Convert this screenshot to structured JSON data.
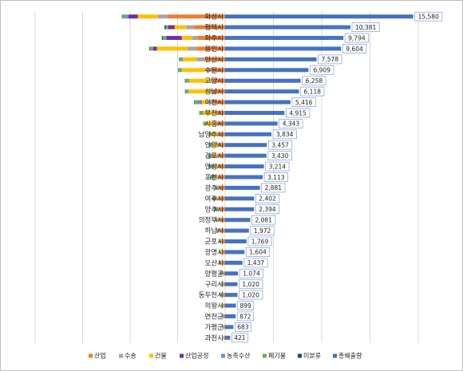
{
  "chart_data": {
    "type": "bar",
    "orientation": "horizontal-diverging",
    "categories": [
      "화성시",
      "평택시",
      "파주시",
      "용인시",
      "안산시",
      "수원시",
      "고양시",
      "성남시",
      "이천시",
      "부천시",
      "시흥시",
      "남양주시",
      "안양시",
      "김포시",
      "안성시",
      "포천시",
      "광주시",
      "여주시",
      "양주시",
      "의정부시",
      "하남시",
      "군포시",
      "광명시",
      "오산시",
      "양평군",
      "구리시",
      "동두천시",
      "의왕시",
      "연천군",
      "가평군",
      "과천시"
    ],
    "totals": [
      15580,
      10381,
      9794,
      9604,
      7578,
      6909,
      6258,
      6118,
      5416,
      4915,
      4343,
      3834,
      3457,
      3430,
      3214,
      3113,
      2881,
      2402,
      2394,
      2081,
      1972,
      1769,
      1604,
      1437,
      1074,
      1020,
      1020,
      899,
      872,
      683,
      421
    ],
    "total_labels": [
      "15,580",
      "10,381",
      "9,794",
      "9,604",
      "7,578",
      "6,909",
      "6,258",
      "6,118",
      "5,416",
      "4,915",
      "4,343",
      "3,834",
      "3,457",
      "3,430",
      "3,214",
      "3,113",
      "2,881",
      "2,402",
      "2,394",
      "2,081",
      "1,972",
      "1,769",
      "1,604",
      "1,437",
      "1,074",
      "1,020",
      "1,020",
      "899",
      "872",
      "683",
      "421"
    ],
    "series": [
      {
        "name": "산업",
        "color": "#ed7d31",
        "values": [
          4800,
          2600,
          2300,
          2400,
          1700,
          1200,
          950,
          1100,
          1000,
          700,
          700,
          550,
          520,
          560,
          500,
          500,
          400,
          380,
          330,
          300,
          300,
          200,
          210,
          220,
          150,
          140,
          160,
          120,
          110,
          90,
          70
        ]
      },
      {
        "name": "수송",
        "color": "#a5a5a5",
        "values": [
          850,
          650,
          450,
          750,
          650,
          350,
          260,
          180,
          480,
          150,
          220,
          120,
          170,
          170,
          170,
          130,
          90,
          160,
          130,
          150,
          110,
          70,
          70,
          70,
          70,
          70,
          50,
          50,
          30,
          30,
          25
        ]
      },
      {
        "name": "건물",
        "color": "#ffc000",
        "values": [
          1700,
          1000,
          900,
          2600,
          1200,
          2100,
          1800,
          1800,
          500,
          1000,
          650,
          450,
          400,
          350,
          270,
          200,
          140,
          220,
          150,
          200,
          120,
          90,
          120,
          80,
          60,
          70,
          60,
          90,
          30,
          40,
          35
        ]
      },
      {
        "name": "산업공정",
        "color": "#7030a0",
        "values": [
          800,
          550,
          1300,
          300,
          0,
          0,
          0,
          0,
          80,
          0,
          0,
          0,
          0,
          0,
          0,
          0,
          0,
          0,
          0,
          0,
          0,
          0,
          0,
          0,
          0,
          0,
          0,
          0,
          0,
          0,
          0
        ]
      },
      {
        "name": "농축수산",
        "color": "#5b9bd5",
        "values": [
          300,
          60,
          150,
          100,
          100,
          150,
          100,
          120,
          300,
          100,
          120,
          90,
          150,
          200,
          300,
          250,
          120,
          180,
          200,
          80,
          100,
          60,
          30,
          90,
          80,
          20,
          80,
          30,
          80,
          60,
          10
        ]
      },
      {
        "name": "폐기물",
        "color": "#70ad47",
        "values": [
          200,
          150,
          150,
          200,
          200,
          130,
          250,
          150,
          180,
          190,
          120,
          140,
          130,
          130,
          130,
          170,
          80,
          90,
          110,
          70,
          70,
          50,
          40,
          50,
          80,
          40,
          60,
          30,
          20,
          40,
          20
        ]
      },
      {
        "name": "미분류",
        "color": "#264478",
        "values": [
          40,
          100,
          80,
          40,
          30,
          25,
          30,
          30,
          60,
          30,
          25,
          20,
          20,
          20,
          30,
          30,
          20,
          30,
          20,
          20,
          20,
          15,
          15,
          20,
          15,
          15,
          15,
          15,
          15,
          10,
          10
        ]
      },
      {
        "name": "총배출량",
        "color": "#4472c4",
        "values": [
          15580,
          10381,
          9794,
          9604,
          7578,
          6909,
          6258,
          6118,
          5416,
          4915,
          4343,
          3834,
          3457,
          3430,
          3214,
          3113,
          2881,
          2402,
          2394,
          2081,
          1972,
          1769,
          1604,
          1437,
          1074,
          1020,
          1020,
          899,
          872,
          683,
          421
        ]
      }
    ],
    "legend": [
      "산업",
      "수송",
      "건물",
      "산업공정",
      "농축수산",
      "폐기물",
      "미분류",
      "총배출량"
    ],
    "legend_position": "bottom",
    "grid": "vertical",
    "xlim_left": [
      0,
      16000
    ],
    "xlim_right": [
      0,
      16000
    ]
  }
}
